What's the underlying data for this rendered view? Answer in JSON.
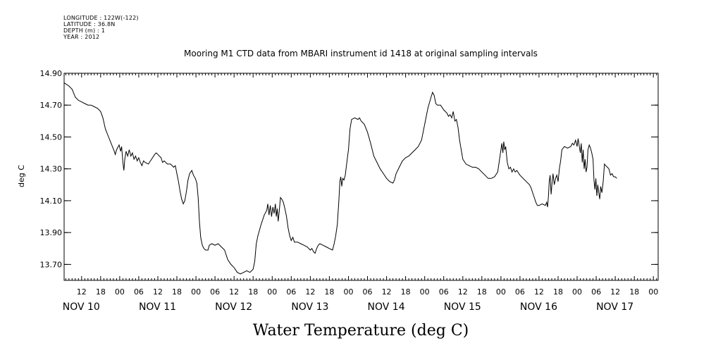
{
  "metadata": {
    "longitude": "LONGITUDE : 122W(-122)",
    "latitude": "LATITUDE : 36.8N",
    "depth": "DEPTH (m) : 1",
    "year": "YEAR : 2012"
  },
  "chart_data": {
    "type": "line",
    "title": "Mooring M1 CTD data from MBARI instrument id 1418 at original sampling intervals",
    "xlabel": "Water Temperature (deg C)",
    "ylabel": "deg C",
    "ylim": [
      13.6,
      14.9
    ],
    "yticks": [
      "13.70",
      "13.90",
      "14.10",
      "14.30",
      "14.50",
      "14.70",
      "14.90"
    ],
    "ytick_values": [
      13.7,
      13.9,
      14.1,
      14.3,
      14.5,
      14.7,
      14.9
    ],
    "xlim_hours": [
      6.5,
      193.5
    ],
    "x_units": "hours from NOV 10 00",
    "hour_tick_labels": [
      {
        "h": 12,
        "label": "12"
      },
      {
        "h": 18,
        "label": "18"
      },
      {
        "h": 24,
        "label": "00"
      },
      {
        "h": 30,
        "label": "06"
      },
      {
        "h": 36,
        "label": "12"
      },
      {
        "h": 42,
        "label": "18"
      },
      {
        "h": 48,
        "label": "00"
      },
      {
        "h": 54,
        "label": "06"
      },
      {
        "h": 60,
        "label": "12"
      },
      {
        "h": 66,
        "label": "18"
      },
      {
        "h": 72,
        "label": "00"
      },
      {
        "h": 78,
        "label": "06"
      },
      {
        "h": 84,
        "label": "12"
      },
      {
        "h": 90,
        "label": "18"
      },
      {
        "h": 96,
        "label": "00"
      },
      {
        "h": 102,
        "label": "06"
      },
      {
        "h": 108,
        "label": "12"
      },
      {
        "h": 114,
        "label": "18"
      },
      {
        "h": 120,
        "label": "00"
      },
      {
        "h": 126,
        "label": "06"
      },
      {
        "h": 132,
        "label": "12"
      },
      {
        "h": 138,
        "label": "18"
      },
      {
        "h": 144,
        "label": "00"
      },
      {
        "h": 150,
        "label": "06"
      },
      {
        "h": 156,
        "label": "12"
      },
      {
        "h": 162,
        "label": "18"
      },
      {
        "h": 168,
        "label": "00"
      },
      {
        "h": 174,
        "label": "06"
      },
      {
        "h": 180,
        "label": "12"
      },
      {
        "h": 186,
        "label": "18"
      },
      {
        "h": 192,
        "label": "00"
      }
    ],
    "day_labels": [
      {
        "h": 6,
        "label": "NOV 10"
      },
      {
        "h": 30,
        "label": "NOV 11"
      },
      {
        "h": 54,
        "label": "NOV 12"
      },
      {
        "h": 78,
        "label": "NOV 13"
      },
      {
        "h": 102,
        "label": "NOV 14"
      },
      {
        "h": 126,
        "label": "NOV 15"
      },
      {
        "h": 150,
        "label": "NOV 16"
      },
      {
        "h": 174,
        "label": "NOV 17"
      }
    ],
    "series": [
      {
        "points": [
          [
            6.5,
            14.84
          ],
          [
            8,
            14.82
          ],
          [
            9,
            14.8
          ],
          [
            10,
            14.75
          ],
          [
            11,
            14.73
          ],
          [
            12,
            14.72
          ],
          [
            13,
            14.71
          ],
          [
            14,
            14.7
          ],
          [
            15,
            14.7
          ],
          [
            16,
            14.69
          ],
          [
            17,
            14.68
          ],
          [
            18,
            14.66
          ],
          [
            18.7,
            14.62
          ],
          [
            19.5,
            14.55
          ],
          [
            20.5,
            14.5
          ],
          [
            21.5,
            14.45
          ],
          [
            22.3,
            14.41
          ],
          [
            22.6,
            14.39
          ],
          [
            23,
            14.42
          ],
          [
            23.8,
            14.45
          ],
          [
            24.3,
            14.41
          ],
          [
            24.6,
            14.44
          ],
          [
            25,
            14.34
          ],
          [
            25.3,
            14.29
          ],
          [
            25.6,
            14.36
          ],
          [
            26,
            14.41
          ],
          [
            26.5,
            14.38
          ],
          [
            27,
            14.42
          ],
          [
            27.5,
            14.38
          ],
          [
            28,
            14.4
          ],
          [
            28.5,
            14.36
          ],
          [
            29,
            14.38
          ],
          [
            29.5,
            14.35
          ],
          [
            30,
            14.37
          ],
          [
            30.5,
            14.34
          ],
          [
            31,
            14.32
          ],
          [
            31.5,
            14.35
          ],
          [
            32,
            14.34
          ],
          [
            33,
            14.33
          ],
          [
            34,
            14.36
          ],
          [
            35,
            14.39
          ],
          [
            35.5,
            14.4
          ],
          [
            36,
            14.39
          ],
          [
            37,
            14.37
          ],
          [
            37.5,
            14.34
          ],
          [
            38,
            14.35
          ],
          [
            39,
            14.33
          ],
          [
            40,
            14.33
          ],
          [
            41,
            14.31
          ],
          [
            41.5,
            14.32
          ],
          [
            42,
            14.27
          ],
          [
            42.5,
            14.22
          ],
          [
            43,
            14.16
          ],
          [
            43.5,
            14.11
          ],
          [
            44,
            14.08
          ],
          [
            44.5,
            14.1
          ],
          [
            45,
            14.16
          ],
          [
            45.5,
            14.23
          ],
          [
            46,
            14.27
          ],
          [
            46.7,
            14.29
          ],
          [
            47.2,
            14.26
          ],
          [
            47.8,
            14.24
          ],
          [
            48.3,
            14.21
          ],
          [
            48.7,
            14.12
          ],
          [
            49.1,
            13.97
          ],
          [
            49.5,
            13.87
          ],
          [
            50,
            13.82
          ],
          [
            50.5,
            13.8
          ],
          [
            51,
            13.79
          ],
          [
            51.8,
            13.79
          ],
          [
            52.2,
            13.82
          ],
          [
            53,
            13.83
          ],
          [
            54,
            13.82
          ],
          [
            55,
            13.83
          ],
          [
            56,
            13.81
          ],
          [
            57,
            13.79
          ],
          [
            58,
            13.73
          ],
          [
            59,
            13.7
          ],
          [
            60,
            13.68
          ],
          [
            61,
            13.65
          ],
          [
            62,
            13.64
          ],
          [
            63,
            13.65
          ],
          [
            64,
            13.66
          ],
          [
            65,
            13.65
          ],
          [
            66,
            13.67
          ],
          [
            66.5,
            13.72
          ],
          [
            67,
            13.83
          ],
          [
            67.5,
            13.88
          ],
          [
            68.5,
            13.95
          ],
          [
            69.5,
            14.01
          ],
          [
            70.3,
            14.04
          ],
          [
            70.6,
            14.08
          ],
          [
            71,
            14.01
          ],
          [
            71.4,
            14.07
          ],
          [
            71.8,
            14.0
          ],
          [
            72.2,
            14.06
          ],
          [
            72.6,
            14.02
          ],
          [
            73,
            14.08
          ],
          [
            73.3,
            14.0
          ],
          [
            73.6,
            14.05
          ],
          [
            73.9,
            13.97
          ],
          [
            74.2,
            14.03
          ],
          [
            74.6,
            14.12
          ],
          [
            75,
            14.11
          ],
          [
            75.5,
            14.09
          ],
          [
            76,
            14.05
          ],
          [
            76.5,
            14.0
          ],
          [
            77,
            13.93
          ],
          [
            77.5,
            13.88
          ],
          [
            78,
            13.85
          ],
          [
            78.5,
            13.87
          ],
          [
            79,
            13.84
          ],
          [
            80,
            13.84
          ],
          [
            81,
            13.83
          ],
          [
            82,
            13.82
          ],
          [
            83,
            13.81
          ],
          [
            84,
            13.79
          ],
          [
            84.5,
            13.8
          ],
          [
            85,
            13.78
          ],
          [
            85.5,
            13.77
          ],
          [
            86,
            13.8
          ],
          [
            86.5,
            13.82
          ],
          [
            87,
            13.83
          ],
          [
            88,
            13.82
          ],
          [
            89,
            13.81
          ],
          [
            90,
            13.8
          ],
          [
            91,
            13.79
          ],
          [
            91.5,
            13.83
          ],
          [
            92,
            13.88
          ],
          [
            92.5,
            13.95
          ],
          [
            93,
            14.1
          ],
          [
            93.3,
            14.22
          ],
          [
            93.6,
            14.25
          ],
          [
            93.9,
            14.19
          ],
          [
            94.2,
            14.24
          ],
          [
            94.6,
            14.23
          ],
          [
            95,
            14.26
          ],
          [
            95.5,
            14.34
          ],
          [
            96,
            14.42
          ],
          [
            96.5,
            14.55
          ],
          [
            97,
            14.61
          ],
          [
            98,
            14.62
          ],
          [
            99,
            14.61
          ],
          [
            99.5,
            14.62
          ],
          [
            100,
            14.6
          ],
          [
            101,
            14.58
          ],
          [
            102,
            14.53
          ],
          [
            103,
            14.46
          ],
          [
            104,
            14.38
          ],
          [
            105,
            14.34
          ],
          [
            106,
            14.3
          ],
          [
            107,
            14.27
          ],
          [
            108,
            14.24
          ],
          [
            109,
            14.22
          ],
          [
            110,
            14.21
          ],
          [
            110.5,
            14.23
          ],
          [
            111,
            14.27
          ],
          [
            112,
            14.31
          ],
          [
            113,
            14.35
          ],
          [
            114,
            14.37
          ],
          [
            115,
            14.38
          ],
          [
            116,
            14.4
          ],
          [
            117,
            14.42
          ],
          [
            118,
            14.44
          ],
          [
            119,
            14.48
          ],
          [
            120,
            14.58
          ],
          [
            121,
            14.68
          ],
          [
            122,
            14.75
          ],
          [
            122.5,
            14.78
          ],
          [
            123,
            14.76
          ],
          [
            123.5,
            14.71
          ],
          [
            124,
            14.7
          ],
          [
            125,
            14.7
          ],
          [
            126,
            14.67
          ],
          [
            127,
            14.65
          ],
          [
            127.5,
            14.63
          ],
          [
            128,
            14.64
          ],
          [
            128.5,
            14.62
          ],
          [
            129,
            14.66
          ],
          [
            129.5,
            14.6
          ],
          [
            130,
            14.61
          ],
          [
            130.5,
            14.56
          ],
          [
            131,
            14.48
          ],
          [
            131.5,
            14.42
          ],
          [
            132,
            14.36
          ],
          [
            133,
            14.33
          ],
          [
            134,
            14.32
          ],
          [
            135,
            14.31
          ],
          [
            136,
            14.31
          ],
          [
            137,
            14.3
          ],
          [
            138,
            14.28
          ],
          [
            139,
            14.26
          ],
          [
            140,
            14.24
          ],
          [
            141,
            14.24
          ],
          [
            142,
            14.25
          ],
          [
            143,
            14.28
          ],
          [
            143.5,
            14.35
          ],
          [
            144,
            14.42
          ],
          [
            144.3,
            14.46
          ],
          [
            144.6,
            14.4
          ],
          [
            144.9,
            14.47
          ],
          [
            145.2,
            14.42
          ],
          [
            145.5,
            14.44
          ],
          [
            146,
            14.34
          ],
          [
            146.5,
            14.3
          ],
          [
            147,
            14.31
          ],
          [
            147.5,
            14.28
          ],
          [
            148,
            14.3
          ],
          [
            148.5,
            14.28
          ],
          [
            149,
            14.29
          ],
          [
            150,
            14.26
          ],
          [
            151,
            14.24
          ],
          [
            152,
            14.22
          ],
          [
            153,
            14.2
          ],
          [
            153.5,
            14.18
          ],
          [
            154,
            14.15
          ],
          [
            154.5,
            14.12
          ],
          [
            155,
            14.09
          ],
          [
            155.5,
            14.07
          ],
          [
            156,
            14.07
          ],
          [
            157,
            14.08
          ],
          [
            158,
            14.07
          ],
          [
            158.4,
            14.09
          ],
          [
            158.7,
            14.06
          ],
          [
            159,
            14.14
          ],
          [
            159.2,
            14.22
          ],
          [
            159.5,
            14.26
          ],
          [
            159.8,
            14.14
          ],
          [
            160.1,
            14.21
          ],
          [
            160.4,
            14.27
          ],
          [
            160.8,
            14.2
          ],
          [
            161.2,
            14.24
          ],
          [
            161.6,
            14.26
          ],
          [
            162,
            14.22
          ],
          [
            162.4,
            14.3
          ],
          [
            162.8,
            14.35
          ],
          [
            163.2,
            14.42
          ],
          [
            164,
            14.44
          ],
          [
            165,
            14.43
          ],
          [
            166,
            14.44
          ],
          [
            166.5,
            14.46
          ],
          [
            167,
            14.45
          ],
          [
            167.5,
            14.48
          ],
          [
            168,
            14.44
          ],
          [
            168.3,
            14.49
          ],
          [
            168.6,
            14.45
          ],
          [
            169,
            14.4
          ],
          [
            169.3,
            14.46
          ],
          [
            169.6,
            14.34
          ],
          [
            169.9,
            14.42
          ],
          [
            170.2,
            14.3
          ],
          [
            170.5,
            14.36
          ],
          [
            170.8,
            14.28
          ],
          [
            171.1,
            14.31
          ],
          [
            171.4,
            14.42
          ],
          [
            171.8,
            14.45
          ],
          [
            172.2,
            14.43
          ],
          [
            172.6,
            14.4
          ],
          [
            173,
            14.36
          ],
          [
            173.3,
            14.23
          ],
          [
            173.6,
            14.17
          ],
          [
            173.9,
            14.24
          ],
          [
            174.2,
            14.13
          ],
          [
            174.5,
            14.2
          ],
          [
            174.8,
            14.15
          ],
          [
            175.1,
            14.11
          ],
          [
            175.4,
            14.19
          ],
          [
            175.8,
            14.15
          ],
          [
            176.2,
            14.22
          ],
          [
            176.6,
            14.33
          ],
          [
            177,
            14.32
          ],
          [
            177.5,
            14.31
          ],
          [
            178,
            14.3
          ],
          [
            178.5,
            14.26
          ],
          [
            179,
            14.27
          ],
          [
            179.5,
            14.25
          ],
          [
            180,
            14.25
          ],
          [
            180.5,
            14.24
          ]
        ]
      }
    ]
  }
}
